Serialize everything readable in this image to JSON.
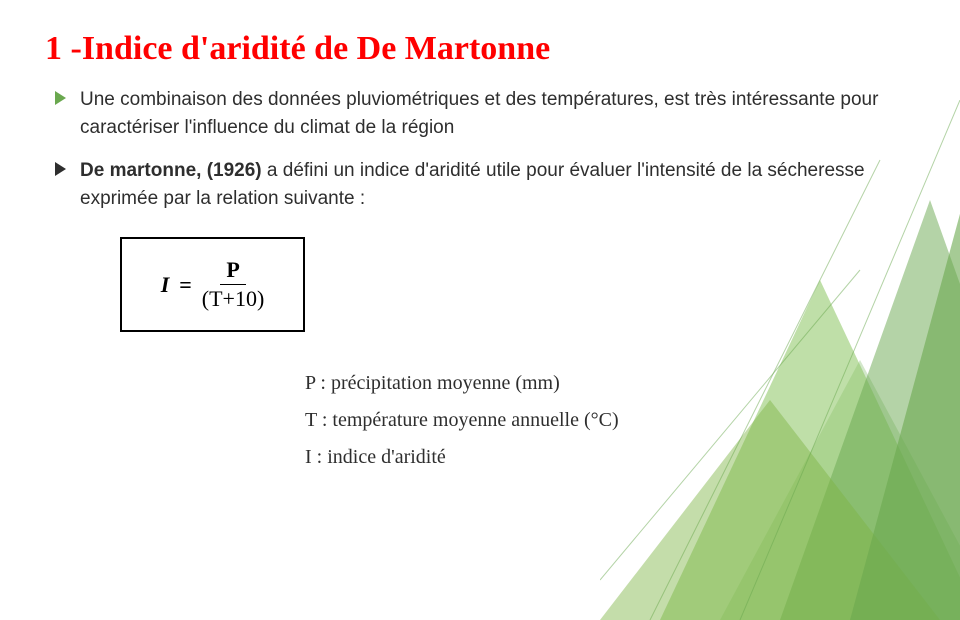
{
  "title": {
    "text": "1 -Indice d'aridité de De Martonne",
    "color": "#ff0000"
  },
  "bullets": [
    {
      "marker_color": "#6aa84f",
      "text_color": "#2e2e2e",
      "html": "Une combinaison des données pluviométriques et des températures, est très intéressante pour caractériser l'influence du climat de la région"
    },
    {
      "marker_color": "#2e2e2e",
      "text_color": "#2e2e2e",
      "html_bold": "De martonne, (1926)",
      "html_rest": " a défini un indice d'aridité utile pour évaluer l'intensité de la sécheresse exprimée par la relation suivante :"
    }
  ],
  "formula": {
    "lhs": "I",
    "eq": "=",
    "numerator": "P",
    "denominator": "(T+10)"
  },
  "legend": [
    "P : précipitation moyenne (mm)",
    "T : température moyenne annuelle (°C)",
    "I : indice d'aridité"
  ],
  "decoration": {
    "colors": [
      "#6aa84f",
      "#8ac561",
      "#b6d7a8",
      "#7cb342"
    ]
  }
}
